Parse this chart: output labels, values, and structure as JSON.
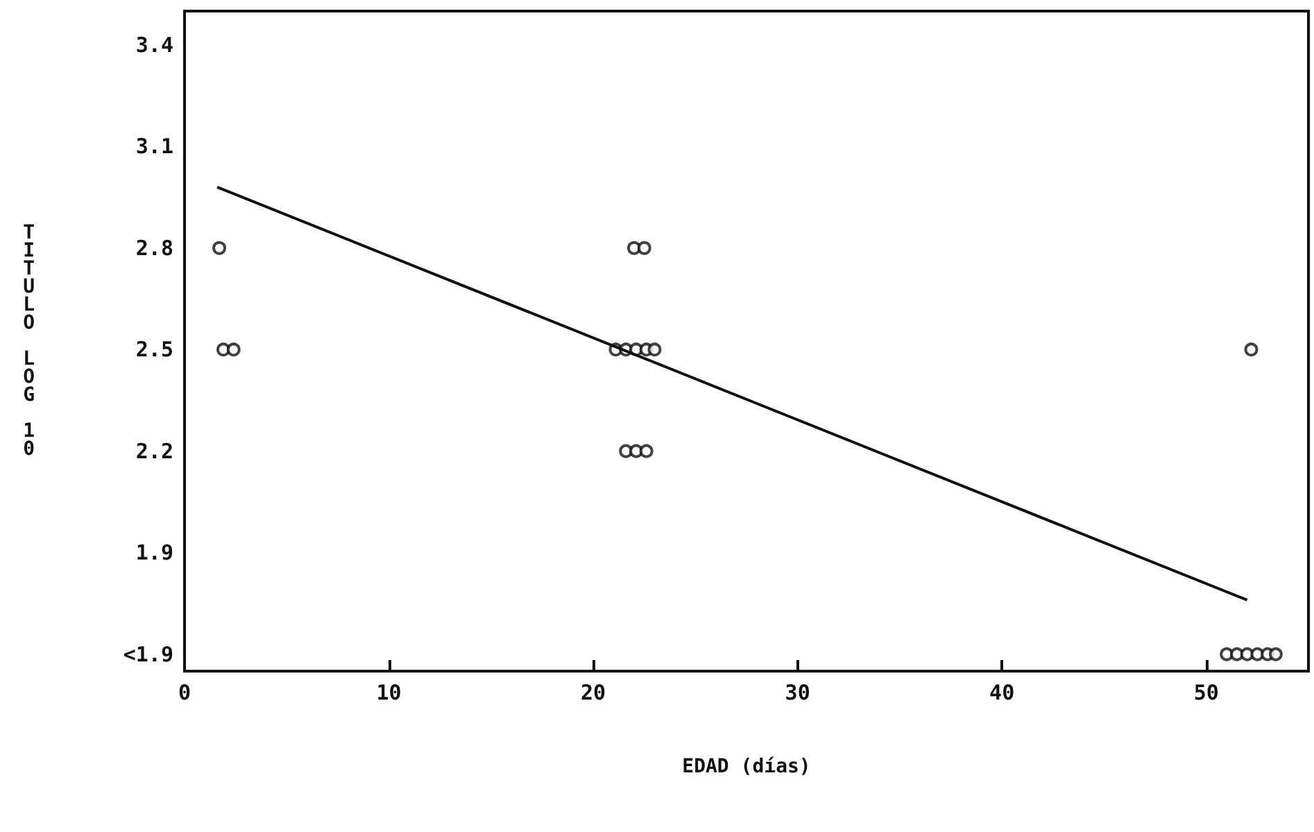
{
  "chart_data": {
    "type": "scatter",
    "xlabel": "EDAD (días)",
    "ylabel": "TITULO LOG 10",
    "xlim": [
      0,
      55
    ],
    "xticks": [
      0,
      10,
      20,
      30,
      40,
      50
    ],
    "ylim": [
      1.55,
      3.5
    ],
    "yticks": [
      {
        "value": 1.6,
        "label": "<1.9"
      },
      1.9,
      2.2,
      2.5,
      2.8,
      3.1,
      3.4
    ],
    "grid": false,
    "marker": "circle",
    "series": [
      {
        "color": "#111111",
        "x": [
          1.7,
          1.9,
          2.4,
          22.0,
          22.5,
          21.1,
          21.6,
          22.1,
          22.6,
          23.0,
          21.6,
          22.1,
          22.6,
          52.2,
          51.0,
          51.5,
          52.0,
          52.5,
          53.0,
          53.4
        ],
        "values": [
          2.8,
          2.5,
          2.5,
          2.8,
          2.8,
          2.5,
          2.5,
          2.5,
          2.5,
          2.5,
          2.2,
          2.2,
          2.2,
          2.5,
          1.6,
          1.6,
          1.6,
          1.6,
          1.6,
          1.6
        ]
      },
      {
        "type": "line",
        "color": "#111111",
        "x": [
          1.6,
          52.0
        ],
        "values": [
          2.98,
          1.76
        ],
        "marker": "none",
        "line_style": "solid"
      }
    ]
  }
}
